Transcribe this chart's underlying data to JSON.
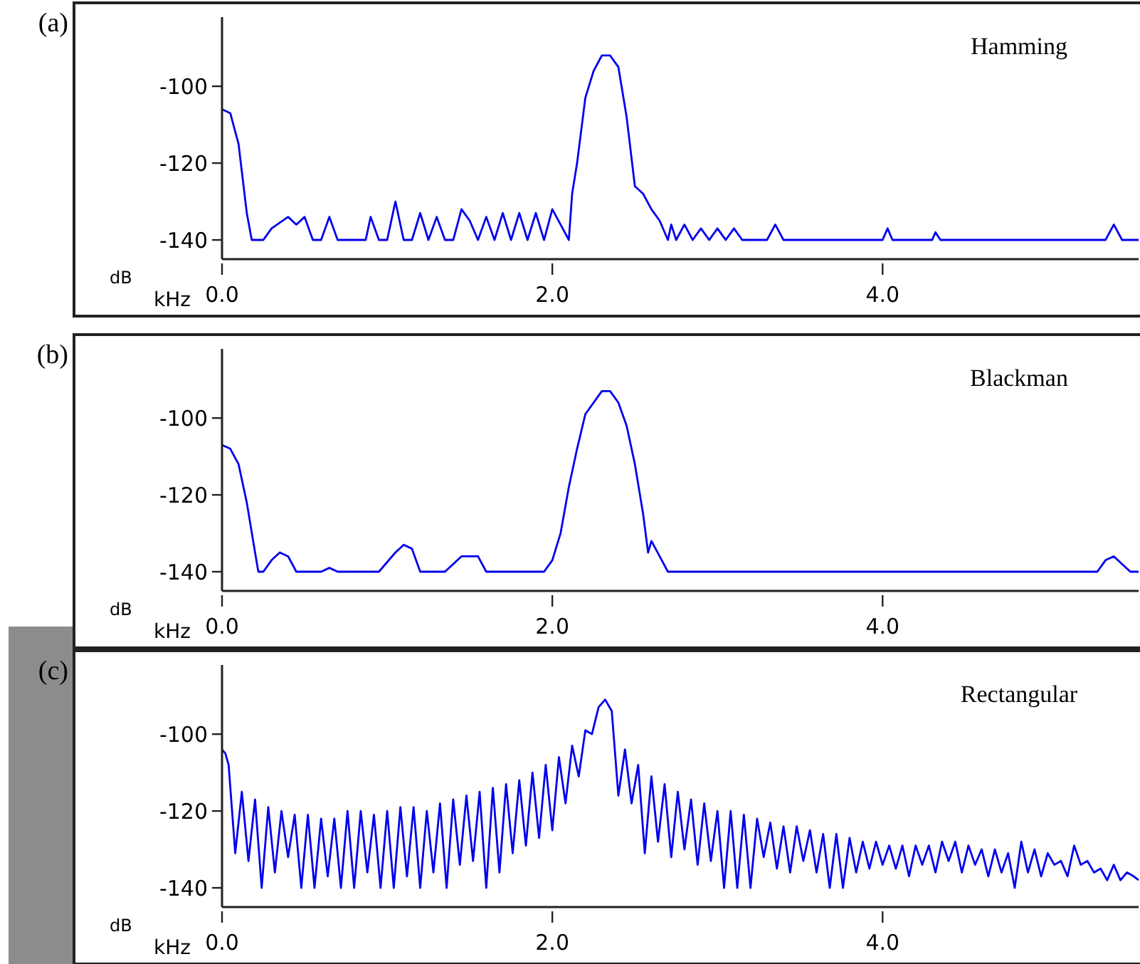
{
  "chart_data": [
    {
      "type": "line",
      "title": "Hamming",
      "xlabel": "kHz",
      "ylabel": "dB",
      "annotations": [
        "(a)"
      ],
      "color": "#0000ee",
      "xlim": [
        0,
        5.55
      ],
      "ylim": [
        -145,
        -82
      ],
      "xticks": [
        {
          "value": 0,
          "label": "0.0"
        },
        {
          "value": 2,
          "label": "2.0"
        },
        {
          "value": 4,
          "label": "4.0"
        }
      ],
      "yticks": [
        -140,
        -120,
        -100
      ],
      "x": [
        0,
        0.05,
        0.1,
        0.15,
        0.18,
        0.25,
        0.3,
        0.4,
        0.45,
        0.5,
        0.55,
        0.6,
        0.65,
        0.7,
        0.87,
        0.9,
        0.95,
        1.0,
        1.05,
        1.1,
        1.15,
        1.2,
        1.25,
        1.3,
        1.35,
        1.4,
        1.45,
        1.5,
        1.55,
        1.6,
        1.65,
        1.7,
        1.75,
        1.8,
        1.85,
        1.9,
        1.95,
        2.0,
        2.05,
        2.1,
        2.12,
        2.15,
        2.2,
        2.25,
        2.3,
        2.35,
        2.4,
        2.45,
        2.5,
        2.55,
        2.6,
        2.65,
        2.7,
        2.72,
        2.75,
        2.8,
        2.85,
        2.9,
        2.95,
        3.0,
        3.05,
        3.1,
        3.15,
        3.3,
        3.35,
        3.4,
        3.6,
        4.0,
        4.03,
        4.06,
        4.3,
        4.32,
        4.35,
        5.35,
        5.4,
        5.45,
        5.55
      ],
      "values": [
        -106,
        -107,
        -115,
        -133,
        -140,
        -140,
        -137,
        -134,
        -136,
        -134,
        -140,
        -140,
        -134,
        -140,
        -140,
        -134,
        -140,
        -140,
        -130,
        -140,
        -140,
        -133,
        -140,
        -134,
        -140,
        -140,
        -132,
        -135,
        -140,
        -134,
        -140,
        -133,
        -140,
        -133,
        -140,
        -133,
        -140,
        -132,
        -136,
        -140,
        -128,
        -120,
        -103,
        -96,
        -92,
        -92,
        -95,
        -108,
        -126,
        -128,
        -132,
        -135,
        -140,
        -136,
        -140,
        -136,
        -140,
        -137,
        -140,
        -137,
        -140,
        -137,
        -140,
        -140,
        -136,
        -140,
        -140,
        -140,
        -137,
        -140,
        -140,
        -138,
        -140,
        -140,
        -136,
        -140,
        -140
      ]
    },
    {
      "type": "line",
      "title": "Blackman",
      "xlabel": "kHz",
      "ylabel": "dB",
      "annotations": [
        "(b)"
      ],
      "color": "#0000ee",
      "xlim": [
        0,
        5.55
      ],
      "ylim": [
        -145,
        -82
      ],
      "xticks": [
        {
          "value": 0,
          "label": "0.0"
        },
        {
          "value": 2,
          "label": "2.0"
        },
        {
          "value": 4,
          "label": "4.0"
        }
      ],
      "yticks": [
        -140,
        -120,
        -100
      ],
      "x": [
        0,
        0.05,
        0.1,
        0.15,
        0.2,
        0.22,
        0.25,
        0.3,
        0.35,
        0.4,
        0.45,
        0.6,
        0.65,
        0.7,
        0.95,
        1.05,
        1.1,
        1.15,
        1.2,
        1.35,
        1.45,
        1.55,
        1.6,
        1.95,
        2.0,
        2.05,
        2.1,
        2.15,
        2.2,
        2.3,
        2.35,
        2.4,
        2.45,
        2.5,
        2.55,
        2.58,
        2.6,
        2.65,
        2.7,
        5.3,
        5.35,
        5.4,
        5.45,
        5.5,
        5.55
      ],
      "values": [
        -107,
        -108,
        -112,
        -122,
        -135,
        -140,
        -140,
        -137,
        -135,
        -136,
        -140,
        -140,
        -139,
        -140,
        -140,
        -135,
        -133,
        -134,
        -140,
        -140,
        -136,
        -136,
        -140,
        -140,
        -137,
        -130,
        -118,
        -108,
        -99,
        -93,
        -93,
        -96,
        -102,
        -112,
        -125,
        -135,
        -132,
        -136,
        -140,
        -140,
        -137,
        -136,
        -138,
        -140,
        -140
      ]
    },
    {
      "type": "line",
      "title": "Rectangular",
      "xlabel": "kHz",
      "ylabel": "dB",
      "annotations": [
        "(c)"
      ],
      "color": "#0000ee",
      "xlim": [
        0,
        5.55
      ],
      "ylim": [
        -145,
        -82
      ],
      "xticks": [
        {
          "value": 0,
          "label": "0.0"
        },
        {
          "value": 2,
          "label": "2.0"
        },
        {
          "value": 4,
          "label": "4.0"
        }
      ],
      "yticks": [
        -140,
        -120,
        -100
      ],
      "x": [
        0,
        0.02,
        0.04,
        0.08,
        0.12,
        0.16,
        0.2,
        0.24,
        0.28,
        0.32,
        0.36,
        0.4,
        0.44,
        0.48,
        0.52,
        0.56,
        0.6,
        0.64,
        0.68,
        0.72,
        0.76,
        0.8,
        0.84,
        0.88,
        0.92,
        0.96,
        1.0,
        1.04,
        1.08,
        1.12,
        1.16,
        1.2,
        1.24,
        1.28,
        1.32,
        1.36,
        1.4,
        1.44,
        1.48,
        1.52,
        1.56,
        1.6,
        1.64,
        1.68,
        1.72,
        1.76,
        1.8,
        1.84,
        1.88,
        1.92,
        1.96,
        2.0,
        2.04,
        2.08,
        2.12,
        2.16,
        2.2,
        2.24,
        2.28,
        2.32,
        2.36,
        2.4,
        2.44,
        2.48,
        2.52,
        2.56,
        2.6,
        2.64,
        2.68,
        2.72,
        2.76,
        2.8,
        2.84,
        2.88,
        2.92,
        2.96,
        3.0,
        3.04,
        3.08,
        3.12,
        3.16,
        3.2,
        3.24,
        3.28,
        3.32,
        3.36,
        3.4,
        3.44,
        3.48,
        3.52,
        3.56,
        3.6,
        3.64,
        3.68,
        3.72,
        3.76,
        3.8,
        3.84,
        3.88,
        3.92,
        3.96,
        4.0,
        4.04,
        4.08,
        4.12,
        4.16,
        4.2,
        4.24,
        4.28,
        4.32,
        4.36,
        4.4,
        4.44,
        4.48,
        4.52,
        4.56,
        4.6,
        4.64,
        4.68,
        4.72,
        4.76,
        4.8,
        4.84,
        4.88,
        4.92,
        4.96,
        5.0,
        5.04,
        5.08,
        5.12,
        5.16,
        5.2,
        5.24,
        5.28,
        5.32,
        5.36,
        5.4,
        5.44,
        5.48,
        5.52,
        5.55
      ],
      "values": [
        -104,
        -105,
        -108,
        -131,
        -115,
        -133,
        -117,
        -140,
        -119,
        -136,
        -120,
        -132,
        -121,
        -140,
        -121,
        -140,
        -122,
        -137,
        -122,
        -140,
        -120,
        -140,
        -120,
        -136,
        -121,
        -140,
        -120,
        -140,
        -119,
        -137,
        -119,
        -140,
        -120,
        -136,
        -118,
        -140,
        -117,
        -134,
        -116,
        -133,
        -115,
        -140,
        -114,
        -136,
        -113,
        -131,
        -112,
        -129,
        -110,
        -127,
        -108,
        -125,
        -106,
        -118,
        -103,
        -111,
        -99,
        -100,
        -93,
        -91,
        -94,
        -116,
        -104,
        -118,
        -108,
        -131,
        -111,
        -128,
        -113,
        -132,
        -115,
        -130,
        -117,
        -134,
        -118,
        -133,
        -120,
        -140,
        -120,
        -140,
        -121,
        -140,
        -122,
        -132,
        -123,
        -135,
        -124,
        -136,
        -124,
        -133,
        -125,
        -136,
        -126,
        -140,
        -126,
        -140,
        -127,
        -136,
        -128,
        -135,
        -128,
        -134,
        -129,
        -135,
        -129,
        -137,
        -129,
        -134,
        -129,
        -136,
        -128,
        -133,
        -128,
        -136,
        -129,
        -134,
        -130,
        -137,
        -130,
        -136,
        -131,
        -140,
        -128,
        -136,
        -130,
        -137,
        -131,
        -134,
        -133,
        -137,
        -129,
        -134,
        -133,
        -136,
        -135,
        -138,
        -134,
        -138,
        -136,
        -137,
        -138
      ]
    }
  ]
}
